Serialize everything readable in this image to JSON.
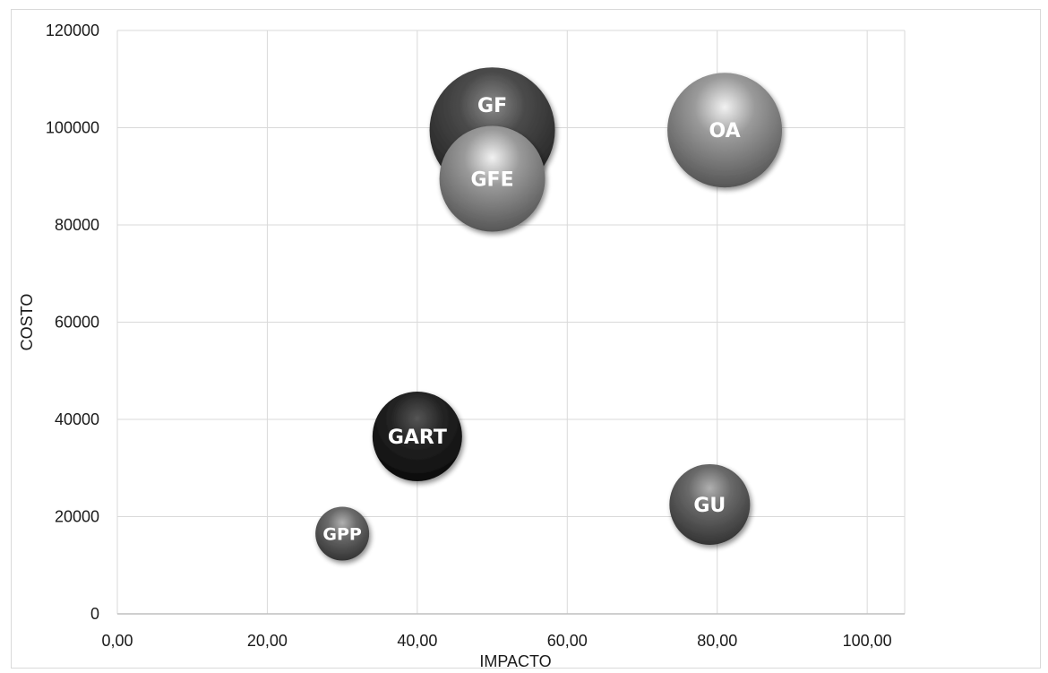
{
  "chart_data": {
    "type": "bubble",
    "xlabel": "IMPACTO",
    "ylabel": "COSTO",
    "xlim": [
      0,
      105
    ],
    "ylim": [
      0,
      120000
    ],
    "x_ticks": [
      "0,00",
      "20,00",
      "40,00",
      "60,00",
      "80,00",
      "100,00"
    ],
    "y_ticks": [
      "0",
      "20000",
      "40000",
      "60000",
      "80000",
      "100000",
      "120000"
    ],
    "grid": true,
    "legend": "none",
    "points": [
      {
        "label": "GF",
        "x": 50,
        "y": 99500,
        "size": 70,
        "color": "dark"
      },
      {
        "label": "GFE",
        "x": 50,
        "y": 89500,
        "size": 59,
        "color": "light"
      },
      {
        "label": "OA",
        "x": 81,
        "y": 99500,
        "size": 64,
        "color": "light"
      },
      {
        "label": "GART",
        "x": 40,
        "y": 36500,
        "size": 50,
        "color": "black"
      },
      {
        "label": "GU",
        "x": 79,
        "y": 22500,
        "size": 45,
        "color": "medium"
      },
      {
        "label": "GPP",
        "x": 30,
        "y": 16500,
        "size": 30,
        "color": "medium"
      }
    ]
  }
}
